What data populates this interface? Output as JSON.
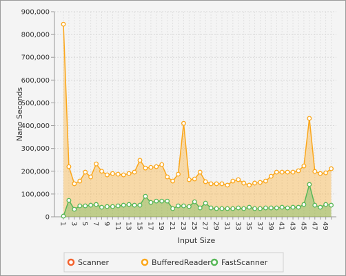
{
  "chart_data": {
    "type": "area",
    "x_label": "Input Size",
    "y_label": "Nano Seconds",
    "categories": [
      "1",
      null,
      "3",
      null,
      "5",
      null,
      "7",
      null,
      "9",
      null,
      "11",
      null,
      "13",
      null,
      "15",
      null,
      "17",
      null,
      "19",
      null,
      "21",
      null,
      "23",
      null,
      "25",
      null,
      "27",
      null,
      "29",
      null,
      "31",
      null,
      "33",
      null,
      "35",
      null,
      "37",
      null,
      "39",
      null,
      "41",
      null,
      "43",
      null,
      "45",
      null,
      "47",
      null,
      "49",
      null
    ],
    "ylim": [
      0,
      900000
    ],
    "yticks": [
      0,
      {
        "value": 100000,
        "label": "100,000"
      },
      {
        "value": 200000,
        "label": "200,000"
      },
      {
        "value": 300000,
        "label": "300,000"
      },
      {
        "value": 400000,
        "label": "400,000"
      },
      {
        "value": 500000,
        "label": "500,000"
      },
      {
        "value": 600000,
        "label": "600,000"
      },
      {
        "value": 700000,
        "label": "700,000"
      },
      {
        "value": 800000,
        "label": "800,000"
      },
      {
        "value": 900000,
        "label": "900,000"
      }
    ],
    "grid": true,
    "legend": "bottom",
    "series": [
      {
        "name": "Scanner",
        "color": "#f3622d",
        "values": [
          null,
          null,
          null,
          null,
          null,
          null,
          null,
          null,
          null,
          null,
          null,
          null,
          null,
          null,
          null,
          null,
          null,
          null,
          null,
          null,
          null,
          null,
          null,
          null,
          null,
          null,
          null,
          null,
          null,
          null,
          null,
          null,
          null,
          null,
          null,
          null,
          null,
          null,
          null,
          null,
          null,
          null,
          null,
          null,
          null,
          null,
          null,
          null,
          null,
          null
        ]
      },
      {
        "name": "BufferedReader",
        "color": "#fba71b",
        "values": [
          845000,
          220000,
          145000,
          157000,
          196000,
          175000,
          232000,
          200000,
          184000,
          190000,
          187000,
          184000,
          190000,
          196000,
          248000,
          214000,
          217000,
          220000,
          229000,
          175000,
          157000,
          187000,
          410000,
          163000,
          166000,
          196000,
          154000,
          145000,
          145000,
          145000,
          139000,
          157000,
          163000,
          148000,
          139000,
          148000,
          151000,
          157000,
          178000,
          196000,
          196000,
          196000,
          196000,
          202000,
          223000,
          432000,
          199000,
          190000,
          193000,
          211000
        ]
      },
      {
        "name": "FastScanner",
        "color": "#57b757",
        "values": [
          3000,
          72000,
          33000,
          48000,
          48000,
          51000,
          54000,
          42000,
          45000,
          45000,
          48000,
          51000,
          54000,
          51000,
          51000,
          90000,
          63000,
          69000,
          69000,
          69000,
          36000,
          48000,
          48000,
          45000,
          66000,
          39000,
          60000,
          39000,
          36000,
          36000,
          36000,
          36000,
          39000,
          36000,
          42000,
          36000,
          36000,
          39000,
          39000,
          39000,
          42000,
          39000,
          42000,
          42000,
          54000,
          142000,
          51000,
          42000,
          54000,
          51000
        ]
      }
    ]
  }
}
